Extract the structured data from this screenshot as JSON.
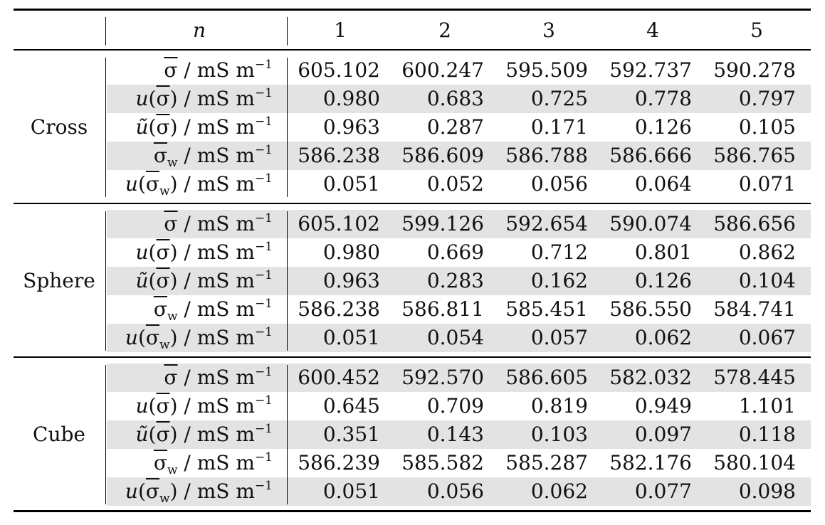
{
  "header": {
    "n_label": "n",
    "columns": [
      "1",
      "2",
      "3",
      "4",
      "5"
    ]
  },
  "row_labels": [
    "σ̄ / mS m⁻¹",
    "u(σ̄) / mS m⁻¹",
    "ũ(σ̄) / mS m⁻¹",
    "σ̄w / mS m⁻¹",
    "u(σ̄w) / mS m⁻¹"
  ],
  "groups": [
    {
      "name": "Cross",
      "rows": [
        [
          "605.102",
          "600.247",
          "595.509",
          "592.737",
          "590.278"
        ],
        [
          "0.980",
          "0.683",
          "0.725",
          "0.778",
          "0.797"
        ],
        [
          "0.963",
          "0.287",
          "0.171",
          "0.126",
          "0.105"
        ],
        [
          "586.238",
          "586.609",
          "586.788",
          "586.666",
          "586.765"
        ],
        [
          "0.051",
          "0.052",
          "0.056",
          "0.064",
          "0.071"
        ]
      ]
    },
    {
      "name": "Sphere",
      "rows": [
        [
          "605.102",
          "599.126",
          "592.654",
          "590.074",
          "586.656"
        ],
        [
          "0.980",
          "0.669",
          "0.712",
          "0.801",
          "0.862"
        ],
        [
          "0.963",
          "0.283",
          "0.162",
          "0.126",
          "0.104"
        ],
        [
          "586.238",
          "586.811",
          "585.451",
          "586.550",
          "584.741"
        ],
        [
          "0.051",
          "0.054",
          "0.057",
          "0.062",
          "0.067"
        ]
      ]
    },
    {
      "name": "Cube",
      "rows": [
        [
          "600.452",
          "592.570",
          "586.605",
          "582.032",
          "578.445"
        ],
        [
          "0.645",
          "0.709",
          "0.819",
          "0.949",
          "1.101"
        ],
        [
          "0.351",
          "0.143",
          "0.103",
          "0.097",
          "0.118"
        ],
        [
          "586.239",
          "585.582",
          "585.287",
          "582.176",
          "580.104"
        ],
        [
          "0.051",
          "0.056",
          "0.062",
          "0.077",
          "0.098"
        ]
      ]
    }
  ]
}
